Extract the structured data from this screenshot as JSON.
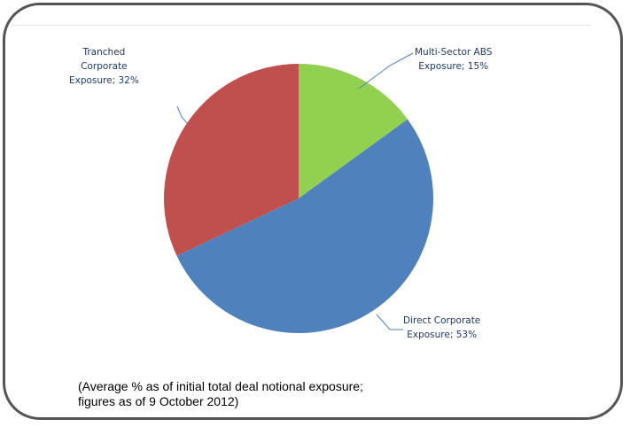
{
  "chart_data": {
    "type": "pie",
    "categories": [
      "Multi-Sector ABS Exposure",
      "Direct Corporate Exposure",
      "Tranched Corporate Exposure"
    ],
    "values": [
      15,
      53,
      32
    ],
    "unit": "%",
    "labels": [
      {
        "line1": "Multi-Sector ABS",
        "line2": "Exposure; 15%"
      },
      {
        "line1": "Direct Corporate",
        "line2": "Exposure; 53%"
      },
      {
        "line1": "Tranched",
        "line2": "Corporate",
        "line3": "Exposure; 32%"
      }
    ],
    "colors": [
      "#92d050",
      "#4f81bd",
      "#c0504d"
    ]
  },
  "caption": {
    "line1": "(Average % as of initial total deal notional exposure;",
    "line2": "figures as of 9 October 2012)"
  }
}
